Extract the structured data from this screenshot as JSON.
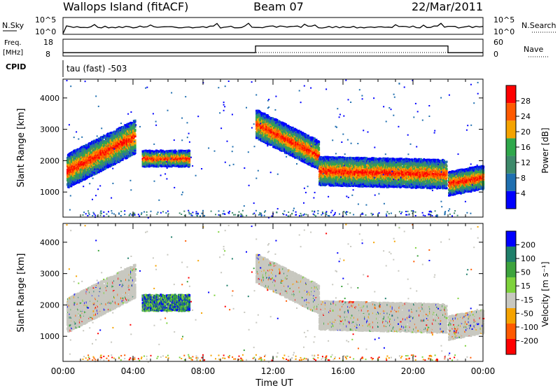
{
  "header": {
    "station": "Wallops Island (fitACF)",
    "beam": "Beam 07",
    "date": "22/Mar/2011"
  },
  "strip_panels": {
    "nsky": {
      "label": "N.Sky",
      "right_label": "N.Search",
      "left_ticks": [
        "10^5",
        "10^0"
      ],
      "right_ticks": [
        "10^5",
        "10^0"
      ]
    },
    "freq": {
      "label_line1": "Freq.",
      "label_line2": "[MHz]",
      "right_label": "Nave",
      "left_ticks": [
        "18",
        "8"
      ],
      "right_ticks": [
        "60",
        "0"
      ],
      "nave_steps": [
        {
          "from_hour": 0,
          "to_hour": 11,
          "level": 0.2
        },
        {
          "from_hour": 11,
          "to_hour": 22,
          "level": 0.6
        },
        {
          "from_hour": 22,
          "to_hour": 24,
          "level": 0.2
        }
      ]
    },
    "cpid": {
      "label": "CPID",
      "text": "tau (fast) -503"
    }
  },
  "chart_data": [
    {
      "type": "heatmap",
      "name": "power",
      "xlabel": "",
      "ylabel": "Slant Range [km]",
      "x_range_hours": [
        0,
        24
      ],
      "ylim": [
        200,
        4600
      ],
      "yticks": [
        "1000",
        "2000",
        "3000",
        "4000"
      ],
      "colorbar_label": "Power [dB]",
      "colorbar_ticks": [
        "4",
        "8",
        "12",
        "16",
        "20",
        "24",
        "28"
      ],
      "colors": [
        "#0000ff",
        "#1f6fb0",
        "#3d8a6a",
        "#2fa84b",
        "#f5a300",
        "#ff5a00",
        "#ff0000"
      ],
      "echo_regions": [
        {
          "from_hour": 0.2,
          "to_hour": 4.1,
          "center_start_km": 1700,
          "center_end_km": 2800,
          "width_km": 500
        },
        {
          "from_hour": 4.5,
          "to_hour": 7.2,
          "center_start_km": 2100,
          "center_end_km": 2100,
          "width_km": 250
        },
        {
          "from_hour": 11.0,
          "to_hour": 14.6,
          "center_start_km": 3200,
          "center_end_km": 2200,
          "width_km": 450
        },
        {
          "from_hour": 14.6,
          "to_hour": 21.9,
          "center_start_km": 1700,
          "center_end_km": 1600,
          "width_km": 450
        },
        {
          "from_hour": 22.0,
          "to_hour": 24.0,
          "center_start_km": 1300,
          "center_end_km": 1500,
          "width_km": 350
        }
      ]
    },
    {
      "type": "heatmap",
      "name": "velocity",
      "xlabel": "Time UT",
      "ylabel": "Slant Range [km]",
      "x_range_hours": [
        0,
        24
      ],
      "xticks": [
        "00:00",
        "04:00",
        "08:00",
        "12:00",
        "16:00",
        "20:00",
        "00:00"
      ],
      "ylim": [
        200,
        4600
      ],
      "yticks": [
        "1000",
        "2000",
        "3000",
        "4000"
      ],
      "colorbar_label": "Velocity [m s⁻¹]",
      "colorbar_ticks": [
        "200",
        "100",
        "50",
        "15",
        "-15",
        "-50",
        "-100",
        "-200"
      ],
      "colors": [
        "#0000ff",
        "#1f7f6a",
        "#3da33d",
        "#7ed23c",
        "#c8c8c0",
        "#f5a300",
        "#ff5a00",
        "#ff0000"
      ],
      "ground_scatter_color": "#c8c8c0"
    }
  ]
}
